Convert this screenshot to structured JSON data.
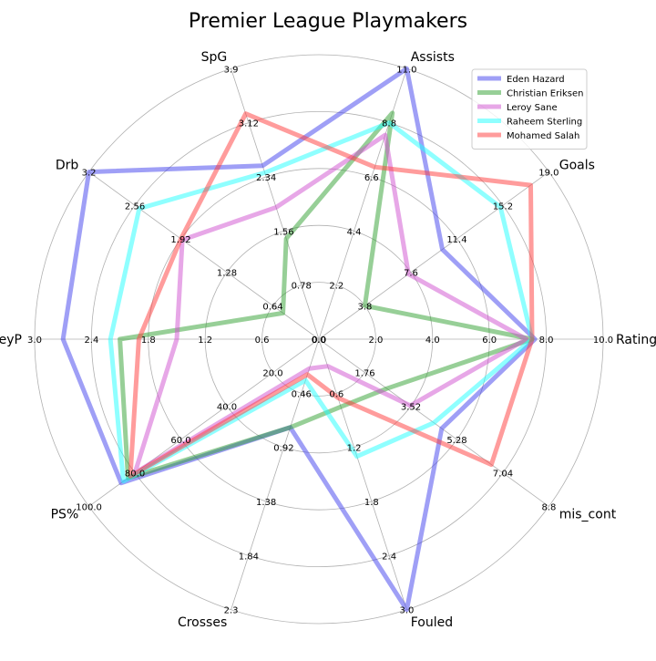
{
  "chart_data": {
    "type": "radar",
    "title": "Premier League Playmakers",
    "axes": [
      {
        "name": "Rating",
        "range": [
          0,
          10.0
        ],
        "ticks": [
          "0.0",
          "2.0",
          "4.0",
          "6.0",
          "8.0",
          "10.0"
        ]
      },
      {
        "name": "Goals",
        "range": [
          0,
          19.0
        ],
        "ticks": [
          "0.0",
          "3.8",
          "7.6",
          "11.4",
          "15.2",
          "19.0"
        ]
      },
      {
        "name": "Assists",
        "range": [
          0,
          11.0
        ],
        "ticks": [
          "0.0",
          "2.2",
          "4.4",
          "6.6",
          "8.8",
          "11.0"
        ]
      },
      {
        "name": "SpG",
        "range": [
          0,
          3.9
        ],
        "ticks": [
          "0.0",
          "0.78",
          "1.56",
          "2.34",
          "3.12",
          "3.9"
        ]
      },
      {
        "name": "Drb",
        "range": [
          0,
          3.2
        ],
        "ticks": [
          "0.0",
          "0.64",
          "1.28",
          "1.92",
          "2.56",
          "3.2"
        ]
      },
      {
        "name": "KeyP",
        "range": [
          0,
          3.0
        ],
        "ticks": [
          "0.0",
          "0.6",
          "1.2",
          "1.8",
          "2.4",
          "3.0"
        ]
      },
      {
        "name": "PS%",
        "range": [
          0,
          100.0
        ],
        "ticks": [
          "0.0",
          "20.0",
          "40.0",
          "60.0",
          "80.0",
          "100.0"
        ]
      },
      {
        "name": "Crosses",
        "range": [
          0,
          2.3
        ],
        "ticks": [
          "0.0",
          "0.46",
          "0.92",
          "1.38",
          "1.84",
          "2.3"
        ]
      },
      {
        "name": "Fouled",
        "range": [
          0,
          3.0
        ],
        "ticks": [
          "0.0",
          "0.6",
          "1.2",
          "1.8",
          "2.4",
          "3.0"
        ]
      },
      {
        "name": "mis_cont",
        "range": [
          0,
          8.8
        ],
        "ticks": [
          "0.0",
          "1.76",
          "3.52",
          "5.28",
          "7.04",
          "8.8"
        ]
      }
    ],
    "series": [
      {
        "name": "Eden Hazard",
        "color": "#4040ee",
        "values": [
          7.6,
          10.2,
          11.0,
          2.5,
          3.2,
          2.7,
          86.0,
          0.75,
          3.0,
          4.7
        ]
      },
      {
        "name": "Christian Eriksen",
        "color": "#30a030",
        "values": [
          7.5,
          3.8,
          9.2,
          1.45,
          0.5,
          2.1,
          83.0,
          0.75,
          0.75,
          2.6
        ]
      },
      {
        "name": "Leroy Sane",
        "color": "#d050d0",
        "values": [
          7.3,
          7.4,
          8.3,
          1.9,
          1.9,
          1.5,
          80.0,
          0.25,
          0.3,
          3.5
        ]
      },
      {
        "name": "Raheem Sterling",
        "color": "#20ffff",
        "values": [
          7.5,
          15.0,
          8.8,
          2.4,
          2.5,
          2.2,
          85.0,
          0.35,
          1.3,
          4.4
        ]
      },
      {
        "name": "Mohamed Salah",
        "color": "#ff3a3a",
        "values": [
          7.5,
          17.5,
          7.0,
          3.25,
          1.92,
          1.9,
          82.0,
          0.3,
          0.65,
          6.6
        ]
      }
    ],
    "grid": true,
    "legend_position": "top-right"
  }
}
